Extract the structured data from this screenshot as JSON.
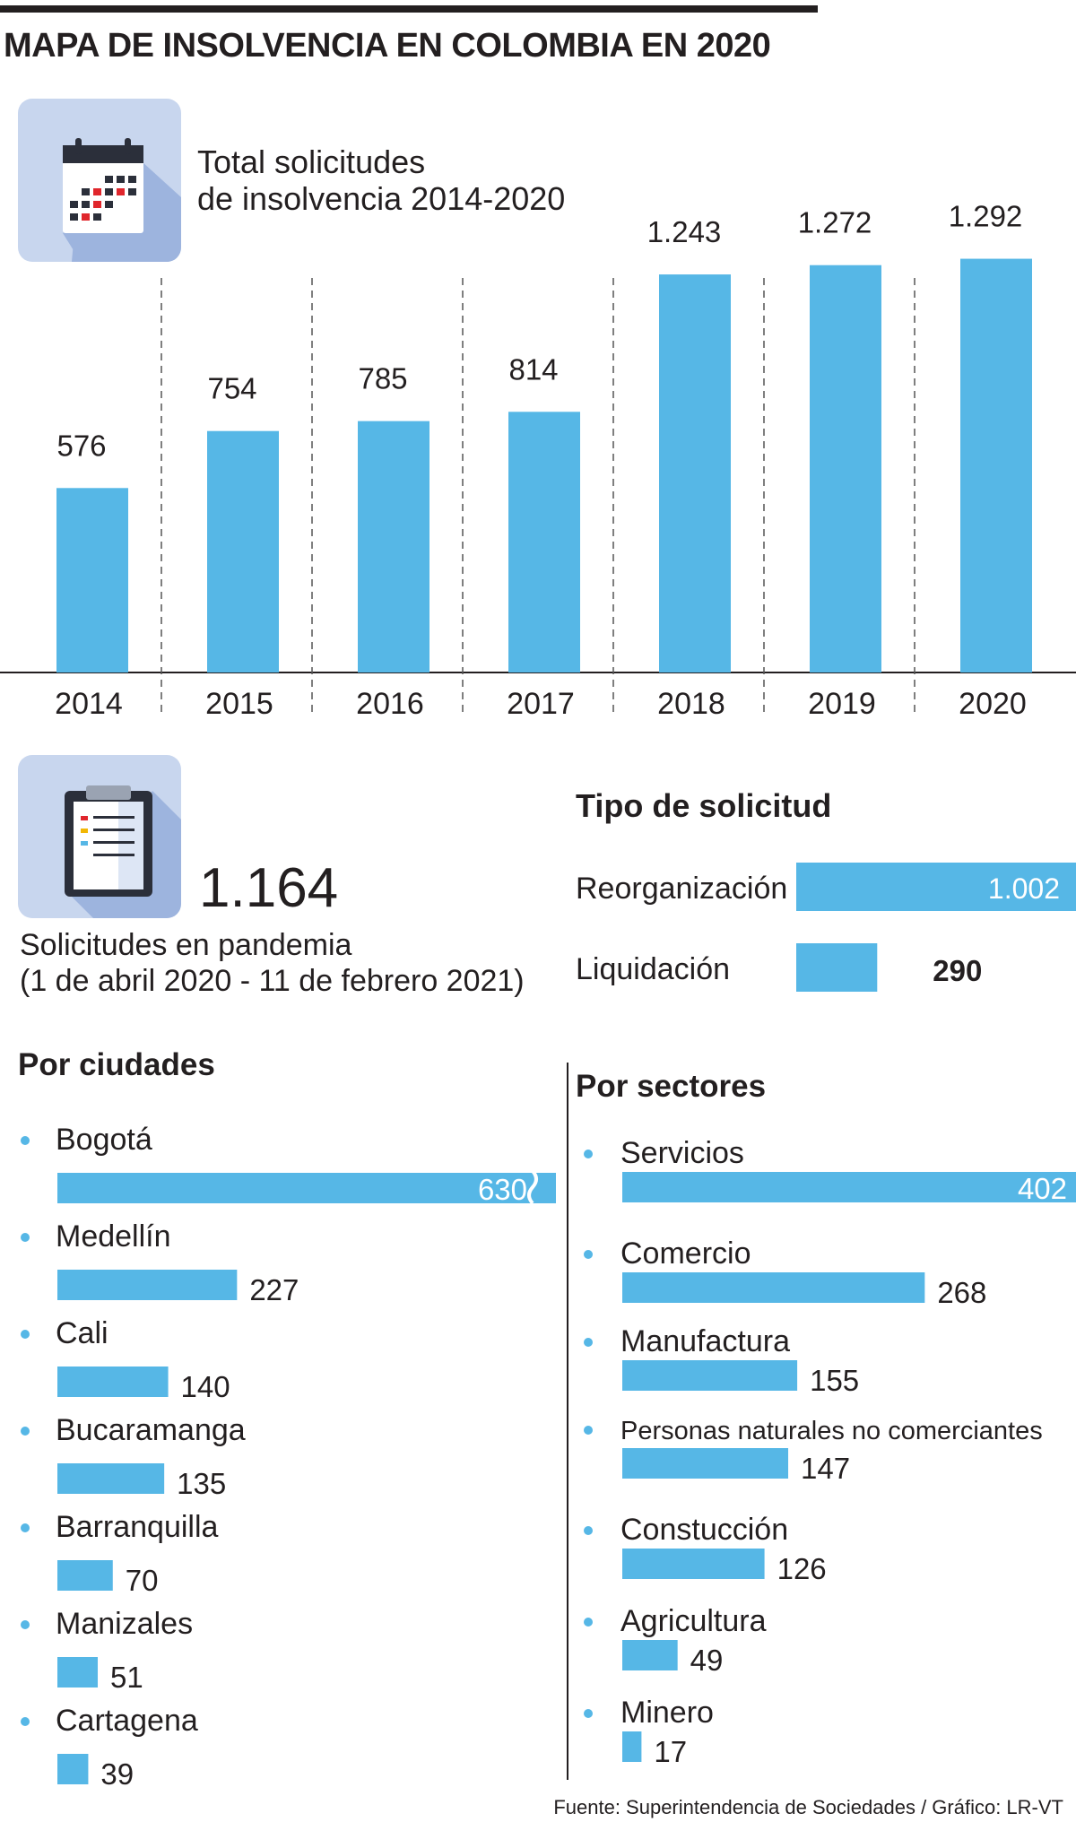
{
  "title": "MAPA DE INSOLVENCIA EN COLOMBIA EN 2020",
  "colors": {
    "bar": "#56b7e6",
    "text": "#231f20",
    "icon_bg": "#c8d6ee",
    "icon_shadow": "#9db4de"
  },
  "icons": {
    "calendar": "calendar-icon",
    "clipboard": "clipboard-icon"
  },
  "annual": {
    "heading_line1": "Total solicitudes",
    "heading_line2": "de insolvencia 2014-2020"
  },
  "pandemic": {
    "total": "1.164",
    "label_line1": "Solicitudes en pandemia",
    "label_line2": "(1 de abril 2020 - 11 de febrero 2021)"
  },
  "tipo": {
    "heading": "Tipo de solicitud"
  },
  "ciudades": {
    "heading": "Por ciudades"
  },
  "sectores": {
    "heading": "Por sectores"
  },
  "source": "Fuente: Superintendencia de Sociedades / Gráfico: LR-VT",
  "chart_data": [
    {
      "type": "bar",
      "title": "Total solicitudes de insolvencia 2014-2020",
      "categories": [
        "2014",
        "2015",
        "2016",
        "2017",
        "2018",
        "2019",
        "2020"
      ],
      "values": [
        576,
        754,
        785,
        814,
        1243,
        1272,
        1292
      ],
      "value_labels": [
        "576",
        "754",
        "785",
        "814",
        "1.243",
        "1.272",
        "1.292"
      ],
      "ylim": [
        0,
        1400
      ],
      "grid": false
    },
    {
      "type": "bar",
      "orientation": "horizontal",
      "title": "Tipo de solicitud",
      "categories": [
        "Reorganización",
        "Liquidación"
      ],
      "values": [
        1002,
        290
      ],
      "value_labels": [
        "1.002",
        "290"
      ]
    },
    {
      "type": "bar",
      "orientation": "horizontal",
      "title": "Por ciudades",
      "categories": [
        "Bogotá",
        "Medellín",
        "Cali",
        "Bucaramanga",
        "Barranquilla",
        "Manizales",
        "Cartagena"
      ],
      "values": [
        630,
        227,
        140,
        135,
        70,
        51,
        39
      ],
      "axis_break_on": "Bogotá"
    },
    {
      "type": "bar",
      "orientation": "horizontal",
      "title": "Por sectores",
      "categories": [
        "Servicios",
        "Comercio",
        "Manufactura",
        "Personas naturales no comerciantes",
        "Constucción",
        "Agricultura",
        "Minero"
      ],
      "values": [
        402,
        268,
        155,
        147,
        126,
        49,
        17
      ]
    }
  ]
}
